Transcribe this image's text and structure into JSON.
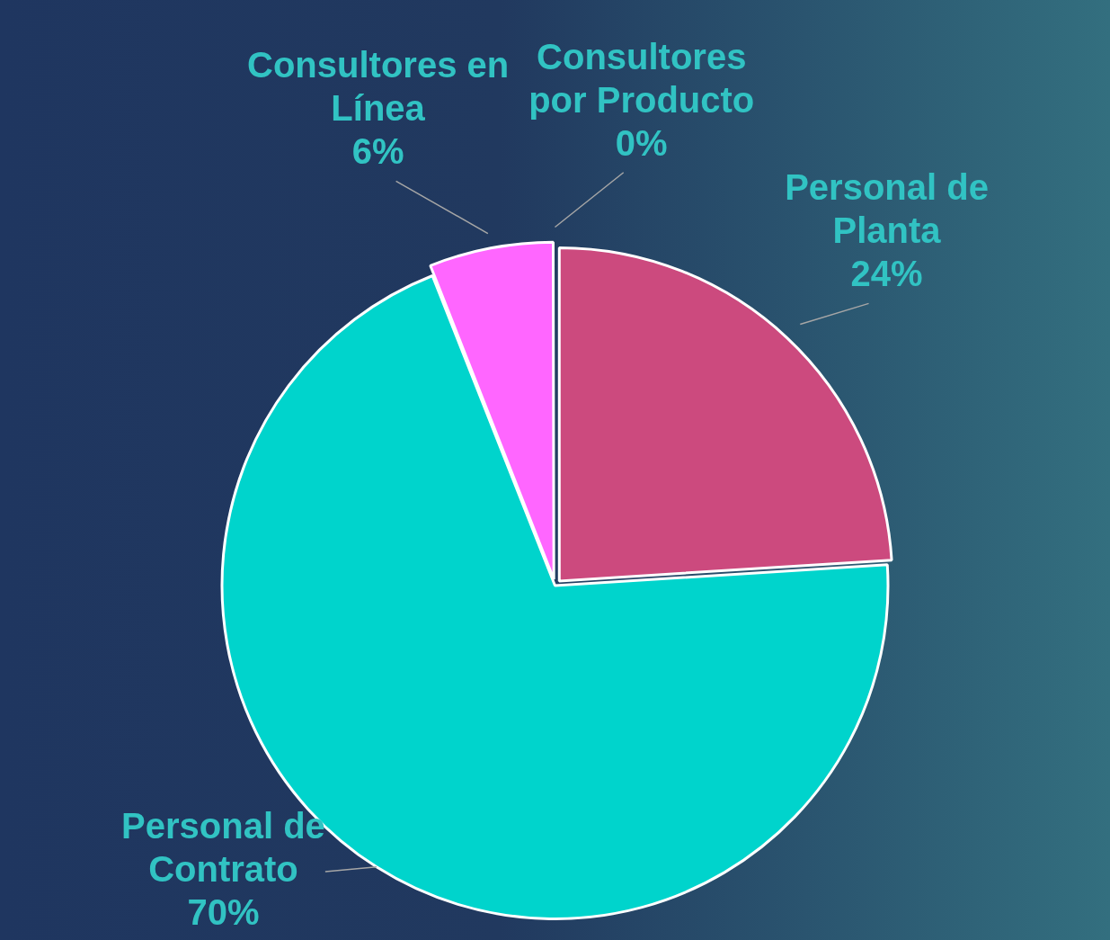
{
  "chart_data": {
    "type": "pie",
    "categories": [
      "Personal de Planta",
      "Personal de Contrato",
      "Consultores en Línea",
      "Consultores por Producto"
    ],
    "values": [
      24,
      70,
      6,
      0
    ],
    "colors": [
      "#cc4a7e",
      "#00d4cc",
      "#ff66ff",
      "#00d4cc"
    ],
    "value_labels": [
      "24%",
      "70%",
      "6%",
      "0%"
    ],
    "legend": false
  }
}
